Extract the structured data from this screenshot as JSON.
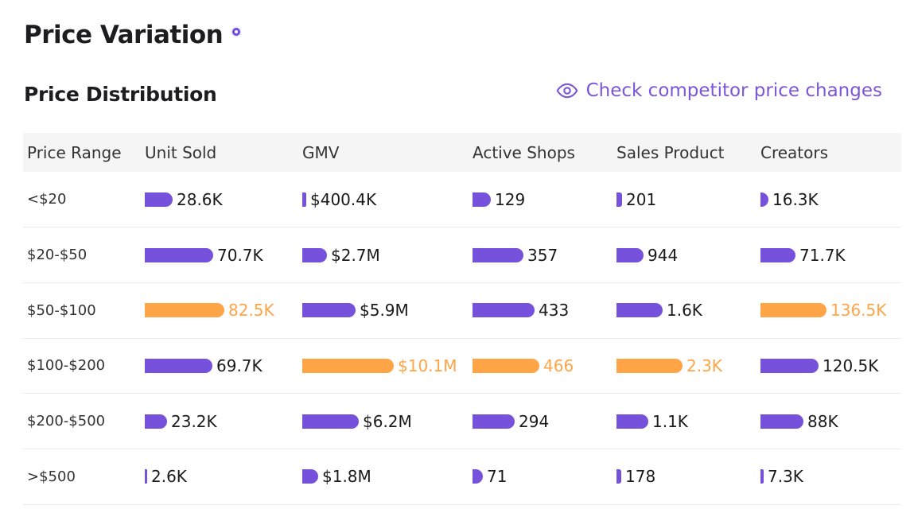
{
  "page": {
    "title": "Price Variation"
  },
  "section": {
    "title": "Price Distribution",
    "link_label": "Check competitor price changes"
  },
  "colors": {
    "accent": "#7652dc",
    "highlight": "#ffa447",
    "link": "#7b56d9"
  },
  "table": {
    "columns": [
      "Price Range",
      "Unit Sold",
      "GMV",
      "Active Shops",
      "Sales Product",
      "Creators"
    ],
    "rows": [
      {
        "range": "<$20",
        "cells": [
          {
            "text": "28.6K",
            "ratio": 0.347
          },
          {
            "text": "$400.4K",
            "ratio": 0.04
          },
          {
            "text": "129",
            "ratio": 0.277
          },
          {
            "text": "201",
            "ratio": 0.087
          },
          {
            "text": "16.3K",
            "ratio": 0.119
          }
        ]
      },
      {
        "range": "$20-$50",
        "cells": [
          {
            "text": "70.7K",
            "ratio": 0.857
          },
          {
            "text": "$2.7M",
            "ratio": 0.267
          },
          {
            "text": "357",
            "ratio": 0.766
          },
          {
            "text": "944",
            "ratio": 0.41
          },
          {
            "text": "71.7K",
            "ratio": 0.525
          }
        ]
      },
      {
        "range": "$50-$100",
        "cells": [
          {
            "text": "82.5K",
            "ratio": 1.0,
            "highlight": true
          },
          {
            "text": "$5.9M",
            "ratio": 0.584
          },
          {
            "text": "433",
            "ratio": 0.929
          },
          {
            "text": "1.6K",
            "ratio": 0.696
          },
          {
            "text": "136.5K",
            "ratio": 1.0,
            "highlight": true
          }
        ]
      },
      {
        "range": "$100-$200",
        "cells": [
          {
            "text": "69.7K",
            "ratio": 0.845
          },
          {
            "text": "$10.1M",
            "ratio": 1.0,
            "highlight": true
          },
          {
            "text": "466",
            "ratio": 1.0,
            "highlight": true
          },
          {
            "text": "2.3K",
            "ratio": 1.0,
            "highlight": true
          },
          {
            "text": "120.5K",
            "ratio": 0.883
          }
        ]
      },
      {
        "range": "$200-$500",
        "cells": [
          {
            "text": "23.2K",
            "ratio": 0.281
          },
          {
            "text": "$6.2M",
            "ratio": 0.614
          },
          {
            "text": "294",
            "ratio": 0.631
          },
          {
            "text": "1.1K",
            "ratio": 0.478
          },
          {
            "text": "88K",
            "ratio": 0.645
          }
        ]
      },
      {
        "range": ">$500",
        "cells": [
          {
            "text": "2.6K",
            "ratio": 0.032
          },
          {
            "text": "$1.8M",
            "ratio": 0.178
          },
          {
            "text": "71",
            "ratio": 0.152
          },
          {
            "text": "178",
            "ratio": 0.077
          },
          {
            "text": "7.3K",
            "ratio": 0.053
          }
        ]
      }
    ]
  }
}
